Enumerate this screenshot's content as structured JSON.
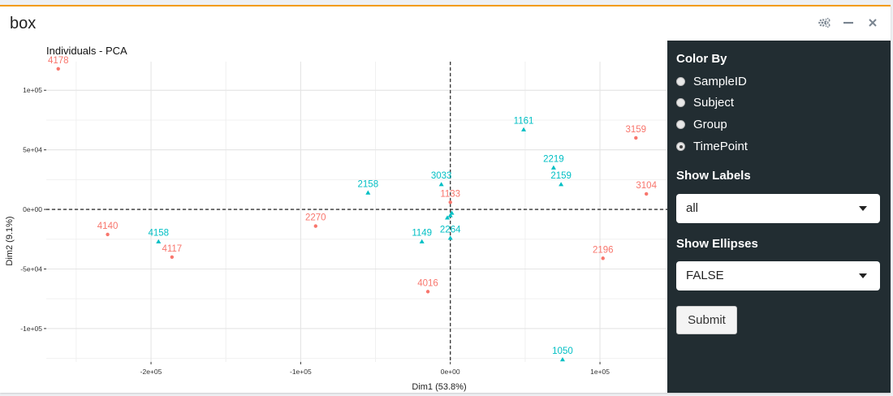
{
  "box": {
    "title": "box"
  },
  "header_icons": [
    "gears-icon",
    "minimize-icon",
    "close-icon"
  ],
  "sidebar": {
    "color_by_label": "Color By",
    "color_by_options": [
      {
        "label": "SampleID",
        "selected": false
      },
      {
        "label": "Subject",
        "selected": false
      },
      {
        "label": "Group",
        "selected": false
      },
      {
        "label": "TimePoint",
        "selected": true
      }
    ],
    "show_labels_label": "Show Labels",
    "show_labels_value": "all",
    "show_ellipses_label": "Show Ellipses",
    "show_ellipses_value": "FALSE",
    "submit_label": "Submit"
  },
  "colors": {
    "accent": "#f39c12",
    "series_a": "#f8766d",
    "series_b": "#00bfc4",
    "sidebar_bg": "#222d32"
  },
  "chart_data": {
    "type": "scatter",
    "title": "Individuals - PCA",
    "xlabel": "Dim1 (53.8%)",
    "ylabel": "Dim2 (9.1%)",
    "xlim": [
      -270000,
      145000
    ],
    "ylim": [
      -128000,
      124000
    ],
    "x_ticks": [
      {
        "value": -200000,
        "label": "-2e+05"
      },
      {
        "value": -100000,
        "label": "-1e+05"
      },
      {
        "value": 0,
        "label": "0e+00"
      },
      {
        "value": 100000,
        "label": "1e+05"
      }
    ],
    "y_ticks": [
      {
        "value": 100000,
        "label": "1e+05"
      },
      {
        "value": 50000,
        "label": "5e+04"
      },
      {
        "value": 0,
        "label": "0e+00"
      },
      {
        "value": -50000,
        "label": "-5e+04"
      },
      {
        "value": -100000,
        "label": "-1e+05"
      }
    ],
    "grid": true,
    "reference_lines": {
      "x": 0,
      "y": 0
    },
    "series": [
      {
        "color": "#f8766d",
        "marker": "circle",
        "points": [
          {
            "label": "4178",
            "x": -262000,
            "y": 118000
          },
          {
            "label": "3159",
            "x": 124000,
            "y": 60000
          },
          {
            "label": "3104",
            "x": 131000,
            "y": 13000
          },
          {
            "label": "4140",
            "x": -229000,
            "y": -21000
          },
          {
            "label": "4117",
            "x": -186000,
            "y": -40000
          },
          {
            "label": "2270",
            "x": -90000,
            "y": -14000
          },
          {
            "label": "2196",
            "x": 102000,
            "y": -41000
          },
          {
            "label": "4016",
            "x": -15000,
            "y": -69000
          },
          {
            "label": "1133",
            "x": 0,
            "y": 6000
          }
        ]
      },
      {
        "color": "#00bfc4",
        "marker": "triangle",
        "points": [
          {
            "label": "1161",
            "x": 49000,
            "y": 67000
          },
          {
            "label": "2219",
            "x": 69000,
            "y": 35000
          },
          {
            "label": "2159",
            "x": 74000,
            "y": 21000
          },
          {
            "label": "3033",
            "x": -6000,
            "y": 21000
          },
          {
            "label": "2158",
            "x": -55000,
            "y": 14000
          },
          {
            "label": "4158",
            "x": -195000,
            "y": -27000
          },
          {
            "label": "1149",
            "x": -19000,
            "y": -27000
          },
          {
            "label": "2264",
            "x": 0,
            "y": -24000
          },
          {
            "label": "1050",
            "x": 75000,
            "y": -126000
          },
          {
            "label": "",
            "x": 0,
            "y": -5000
          },
          {
            "label": "",
            "x": -2000,
            "y": -7000
          },
          {
            "label": "",
            "x": 1000,
            "y": -3000
          }
        ]
      }
    ]
  }
}
